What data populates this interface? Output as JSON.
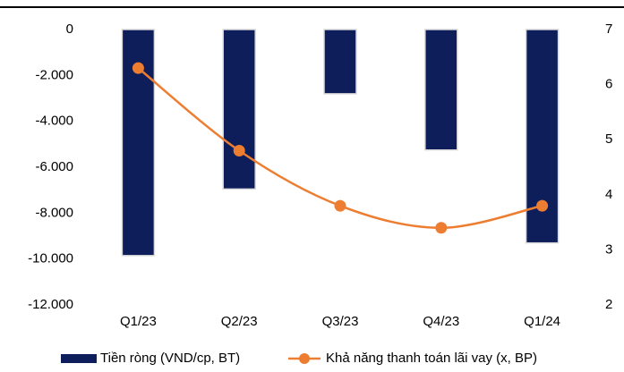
{
  "chart_data": {
    "type": "bar",
    "categories": [
      "Q1/23",
      "Q2/23",
      "Q3/23",
      "Q4/23",
      "Q1/24"
    ],
    "series": [
      {
        "name": "Tiền ròng (VND/cp, BT)",
        "color": "#0d1e5b",
        "values": [
          -9850,
          -6950,
          -2800,
          -5250,
          -9300
        ]
      },
      {
        "name": "Khả năng thanh toán lãi vay (x, BP)",
        "color": "#ed7d31",
        "type": "line",
        "axis": "y2",
        "values": [
          6.3,
          4.8,
          3.8,
          3.4,
          3.8
        ]
      }
    ],
    "ylim": [
      -12000,
      0
    ],
    "yticks": [
      0,
      {
        "value": -2000,
        "label": "-2.000"
      },
      {
        "value": -4000,
        "label": "-4.000"
      },
      {
        "value": -6000,
        "label": "-6.000"
      },
      {
        "value": -8000,
        "label": "-8.000"
      },
      {
        "value": -10000,
        "label": "-10.000"
      },
      {
        "value": -12000,
        "label": "-12.000"
      }
    ],
    "y2lim": [
      2,
      7
    ],
    "y2ticks": [
      2,
      3,
      4,
      5,
      6,
      7
    ],
    "grid": false,
    "legend": "bottom"
  }
}
